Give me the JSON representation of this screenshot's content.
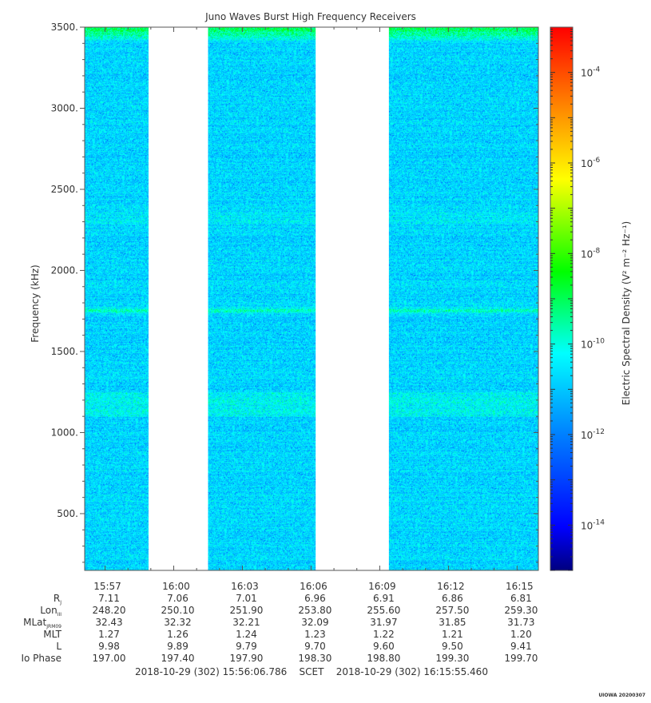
{
  "chart_data": {
    "type": "heatmap",
    "title": "Juno Waves Burst High Frequency Receivers",
    "ylabel": "Frequency (kHz)",
    "colorbar_label": "Electric Spectral Density (V² m⁻² Hz⁻¹)",
    "ylim": [
      150,
      3500
    ],
    "yticks": [
      {
        "value": 500,
        "label": "500."
      },
      {
        "value": 1000,
        "label": "1000."
      },
      {
        "value": 1500,
        "label": "1500."
      },
      {
        "value": 2000,
        "label": "2000."
      },
      {
        "value": 2500,
        "label": "2500."
      },
      {
        "value": 3000,
        "label": "3000."
      },
      {
        "value": 3500,
        "label": "3500."
      }
    ],
    "colorbar_scale": "log",
    "colorbar_range_exp": [
      -15,
      -3
    ],
    "colorbar_ticks": [
      {
        "exp": -4,
        "base": "10",
        "sup": "-4"
      },
      {
        "exp": -6,
        "base": "10",
        "sup": "-6"
      },
      {
        "exp": -8,
        "base": "10",
        "sup": "-8"
      },
      {
        "exp": -10,
        "base": "10",
        "sup": "-10"
      },
      {
        "exp": -12,
        "base": "10",
        "sup": "-12"
      },
      {
        "exp": -14,
        "base": "10",
        "sup": "-14"
      }
    ],
    "colormap": [
      "#00007f",
      "#0000ff",
      "#0080ff",
      "#00ffff",
      "#00ff00",
      "#ffff00",
      "#ff8000",
      "#ff0000"
    ],
    "time_range_min": [
      956.11,
      975.93
    ],
    "data_gaps_min": [
      [
        958.9,
        961.5
      ],
      [
        966.2,
        969.4
      ]
    ],
    "x_ticks": [
      {
        "label": "15:57",
        "minute": 957
      },
      {
        "label": "16:00",
        "minute": 960
      },
      {
        "label": "16:03",
        "minute": 963
      },
      {
        "label": "16:06",
        "minute": 966
      },
      {
        "label": "16:09",
        "minute": 969
      },
      {
        "label": "16:12",
        "minute": 972
      },
      {
        "label": "16:15",
        "minute": 975
      }
    ],
    "features": {
      "background_level": "about 10^-12",
      "top_band_khz": [
        3420,
        3500
      ],
      "bright_line_khz": 1755,
      "enhanced_band_khz": [
        1100,
        1250
      ],
      "faint_band_khz": [
        2280,
        2360
      ]
    },
    "ephemeris": [
      {
        "label": "R",
        "sub": "J",
        "values": [
          "7.11",
          "7.06",
          "7.01",
          "6.96",
          "6.91",
          "6.86",
          "6.81"
        ]
      },
      {
        "label": "Lon",
        "sub": "III",
        "values": [
          "248.20",
          "250.10",
          "251.90",
          "253.80",
          "255.60",
          "257.50",
          "259.30"
        ]
      },
      {
        "label": "MLat",
        "sub": "JRM09",
        "values": [
          "32.43",
          "32.32",
          "32.21",
          "32.09",
          "31.97",
          "31.85",
          "31.73"
        ]
      },
      {
        "label": "MLT",
        "sub": "",
        "values": [
          "1.27",
          "1.26",
          "1.24",
          "1.23",
          "1.22",
          "1.21",
          "1.20"
        ]
      },
      {
        "label": "L",
        "sub": "",
        "values": [
          "9.98",
          "9.89",
          "9.79",
          "9.70",
          "9.60",
          "9.50",
          "9.41"
        ]
      },
      {
        "label": "Io Phase",
        "sub": "",
        "values": [
          "197.00",
          "197.40",
          "197.90",
          "198.30",
          "198.80",
          "199.30",
          "199.70"
        ]
      }
    ],
    "scet_line": "2018-10-29 (302) 15:56:06.786    SCET    2018-10-29 (302) 16:15:55.460",
    "footer_stamp": "UIOWA 20200307"
  }
}
